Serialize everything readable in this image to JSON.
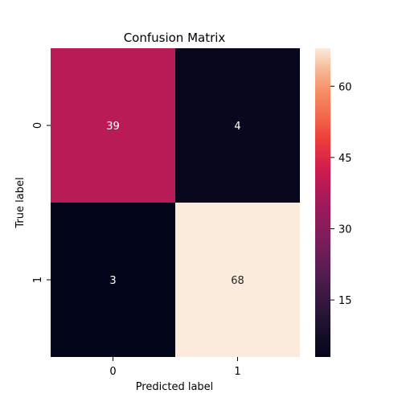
{
  "chart_data": {
    "type": "heatmap",
    "title": "Confusion Matrix",
    "xlabel": "Predicted label",
    "ylabel": "True label",
    "x_categories": [
      "0",
      "1"
    ],
    "y_categories": [
      "0",
      "1"
    ],
    "values": [
      [
        39,
        4
      ],
      [
        3,
        68
      ]
    ],
    "colorbar": {
      "min": 3,
      "max": 68,
      "ticks": [
        15,
        30,
        45,
        60
      ],
      "colormap": "rocket"
    },
    "annotations": true
  }
}
